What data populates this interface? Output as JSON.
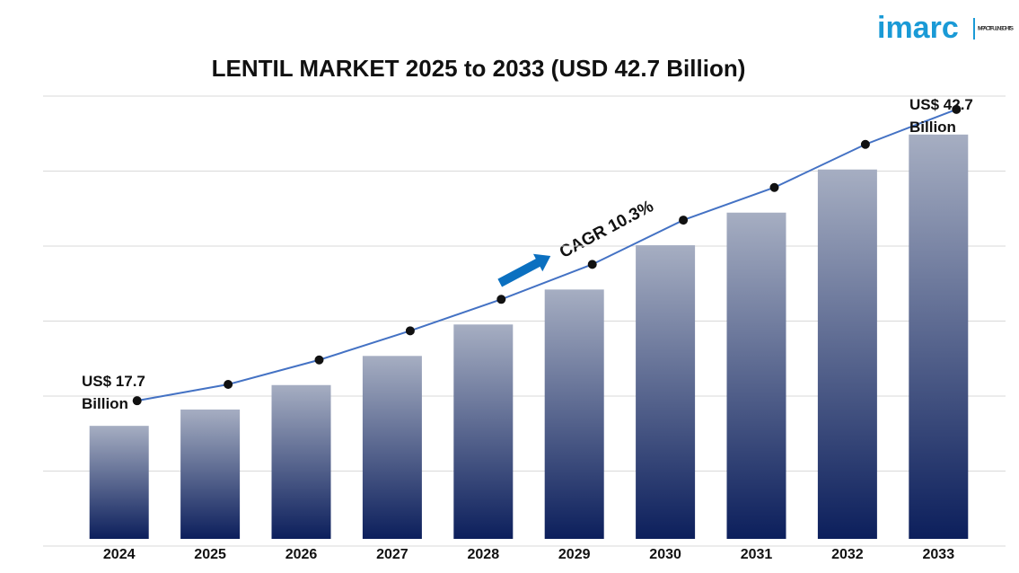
{
  "chart_data": {
    "type": "bar",
    "title": "LENTIL MARKET 2025 to 2033 (USD 42.7 Billion)",
    "categories": [
      "2024",
      "2025",
      "2026",
      "2027",
      "2028",
      "2029",
      "2030",
      "2031",
      "2032",
      "2033"
    ],
    "values": [
      17.7,
      19.1,
      21.2,
      23.7,
      26.4,
      29.4,
      33.2,
      36.0,
      39.7,
      42.7
    ],
    "color": "#0c1f5c",
    "line_color": "#4472c4",
    "ylim": [
      8,
      46
    ],
    "grid": true,
    "annotations": [
      "US$ 17.7 Billion",
      "US$ 42.7 Billion",
      "CAGR 10.3%"
    ]
  },
  "logo": {
    "name": "imarc",
    "tagline": "IMPACTFUL INSIGHTS"
  }
}
